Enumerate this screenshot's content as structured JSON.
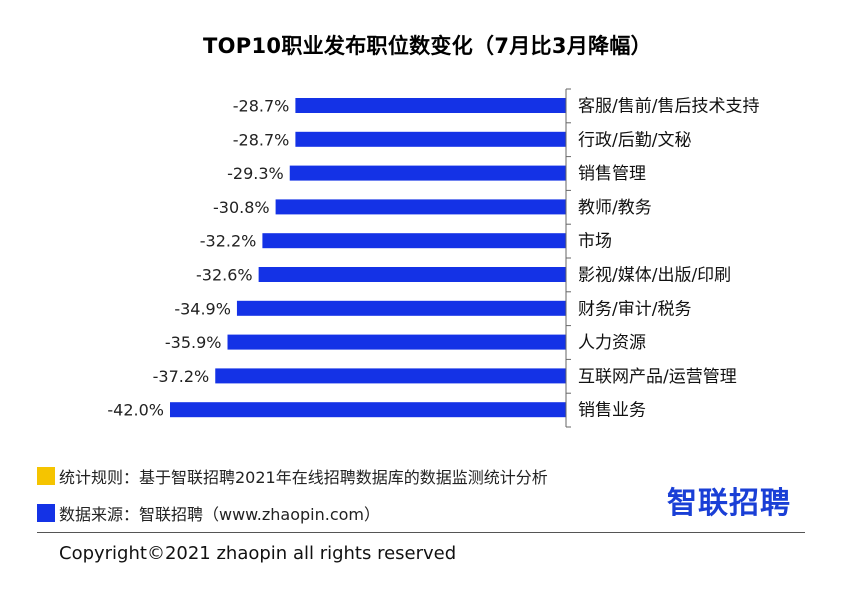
{
  "chart_data": {
    "type": "bar",
    "orientation": "horizontal",
    "title": "TOP10职业发布职位数变化（7月比3月降幅）",
    "categories": [
      "客服/售前/售后技术支持",
      "行政/后勤/文秘",
      "销售管理",
      "教师/教务",
      "市场",
      "影视/媒体/出版/印刷",
      "财务/审计/税务",
      "人力资源",
      "互联网产品/运营管理",
      "销售业务"
    ],
    "values": [
      -28.7,
      -28.7,
      -29.3,
      -30.8,
      -32.2,
      -32.6,
      -34.9,
      -35.9,
      -37.2,
      -42.0
    ],
    "value_labels": [
      "-28.7%",
      "-28.7%",
      "-29.3%",
      "-30.8%",
      "-32.2%",
      "-32.6%",
      "-34.9%",
      "-35.9%",
      "-37.2%",
      "-42.0%"
    ],
    "xlim": [
      -42.0,
      0
    ],
    "bar_color": "#1432e6",
    "legend_position": "bottom-left",
    "grid": false
  },
  "legend": {
    "items": [
      {
        "color": "#f5c400",
        "text": "统计规则：基于智联招聘2021年在线招聘数据库的数据监测统计分析"
      },
      {
        "color": "#1432e6",
        "text": "数据来源：智联招聘（www.zhaopin.com）"
      }
    ]
  },
  "logo": {
    "text": "智联招聘",
    "color": "#1a3fd6"
  },
  "footer": {
    "copyright": "Copyright©2021 zhaopin all rights reserved"
  }
}
